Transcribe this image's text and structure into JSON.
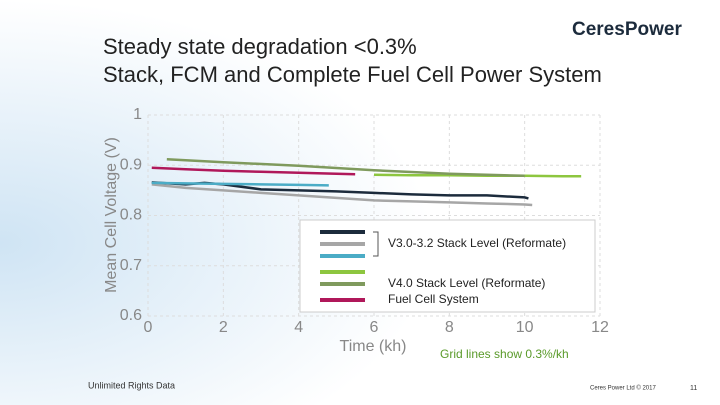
{
  "slide": {
    "logo": "CeresPower",
    "footer_left": "Unlimited Rights Data",
    "footer_right": "Ceres Power Ltd © 2017",
    "page_number": "11"
  },
  "chart_data": {
    "type": "line",
    "title": "Steady state degradation <0.3%",
    "subtitle": "Stack, FCM and Complete Fuel Cell Power System",
    "x_label": "Time (kh)",
    "y_label": "Mean Cell Voltage (V)",
    "annotation": "Grid lines show 0.3%/kh",
    "xlim": [
      0,
      12
    ],
    "xticks": [
      0,
      2,
      4,
      6,
      8,
      10,
      12
    ],
    "ylim": [
      0.6,
      1
    ],
    "yticks": [
      0.6,
      0.7,
      0.8,
      0.9,
      1
    ],
    "grid": true,
    "series": [
      {
        "color": "#1c2b3c",
        "x": [
          0.1,
          1,
          1.5,
          2,
          3,
          4,
          5,
          6,
          7,
          8,
          9,
          10,
          10.1
        ],
        "values": [
          0.866,
          0.862,
          0.865,
          0.862,
          0.852,
          0.85,
          0.848,
          0.845,
          0.842,
          0.84,
          0.84,
          0.836,
          0.834
        ]
      },
      {
        "color": "#a6a6a6",
        "x": [
          0.1,
          1,
          2,
          3,
          4,
          5,
          6,
          7,
          8,
          9,
          10,
          10.2
        ],
        "values": [
          0.862,
          0.855,
          0.85,
          0.845,
          0.84,
          0.835,
          0.83,
          0.828,
          0.826,
          0.824,
          0.822,
          0.821
        ]
      },
      {
        "color": "#4bacc6",
        "x": [
          0.1,
          1,
          2,
          3,
          4,
          4.8
        ],
        "values": [
          0.865,
          0.864,
          0.863,
          0.862,
          0.861,
          0.86
        ]
      },
      {
        "color": "#8dc63f",
        "x": [
          6,
          7,
          8,
          9,
          10,
          11,
          11.5
        ],
        "values": [
          0.881,
          0.88,
          0.88,
          0.879,
          0.879,
          0.878,
          0.878
        ]
      },
      {
        "color": "#7f9a5d",
        "x": [
          0.5,
          2,
          4,
          6,
          8,
          10
        ],
        "values": [
          0.912,
          0.906,
          0.899,
          0.89,
          0.883,
          0.879
        ]
      },
      {
        "color": "#b0185a",
        "x": [
          0.1,
          1,
          2,
          3,
          4,
          5,
          5.5
        ],
        "values": [
          0.895,
          0.892,
          0.889,
          0.887,
          0.885,
          0.883,
          0.882
        ]
      }
    ],
    "legend_groups": [
      {
        "label": "V3.0-3.2 Stack Level (Reformate)",
        "series": [
          0,
          1,
          2
        ]
      },
      {
        "label": "V4.0 Stack Level (Reformate)",
        "series": [
          3,
          4
        ]
      },
      {
        "label": "Fuel Cell System",
        "series": [
          5
        ]
      }
    ]
  }
}
